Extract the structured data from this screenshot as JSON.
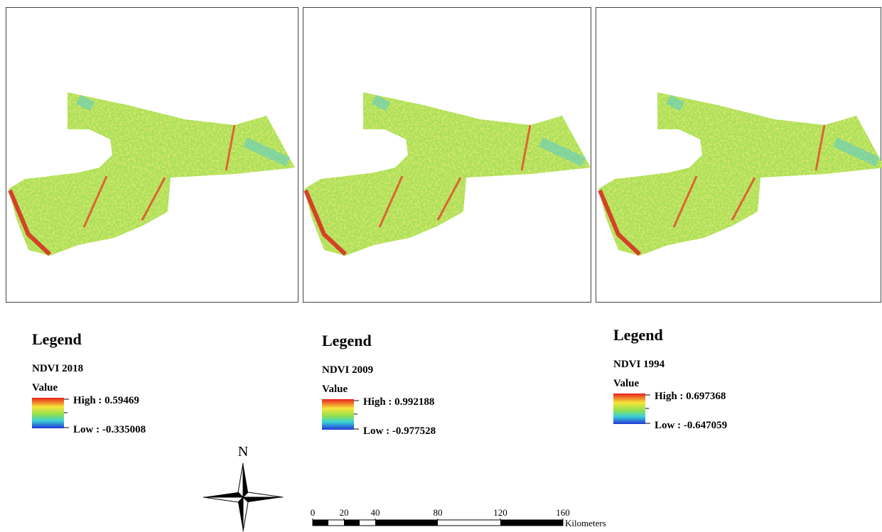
{
  "panels": [
    {
      "legend_title": "Legend",
      "layer": "NDVI 2018",
      "value_label": "Value",
      "high": "High : 0.59469",
      "low": "Low : -0.335008"
    },
    {
      "legend_title": "Legend",
      "layer": "NDVI 2009",
      "value_label": "Value",
      "high": "High : 0.992188",
      "low": "Low : -0.977528"
    },
    {
      "legend_title": "Legend",
      "layer": "NDVI 1994",
      "value_label": "Value",
      "high": "High : 0.697368",
      "low": "Low : -0.647059"
    }
  ],
  "north": "N",
  "scale_bar": {
    "ticks": [
      0,
      20,
      40,
      80,
      120,
      160
    ],
    "unit": "Kilometers"
  }
}
